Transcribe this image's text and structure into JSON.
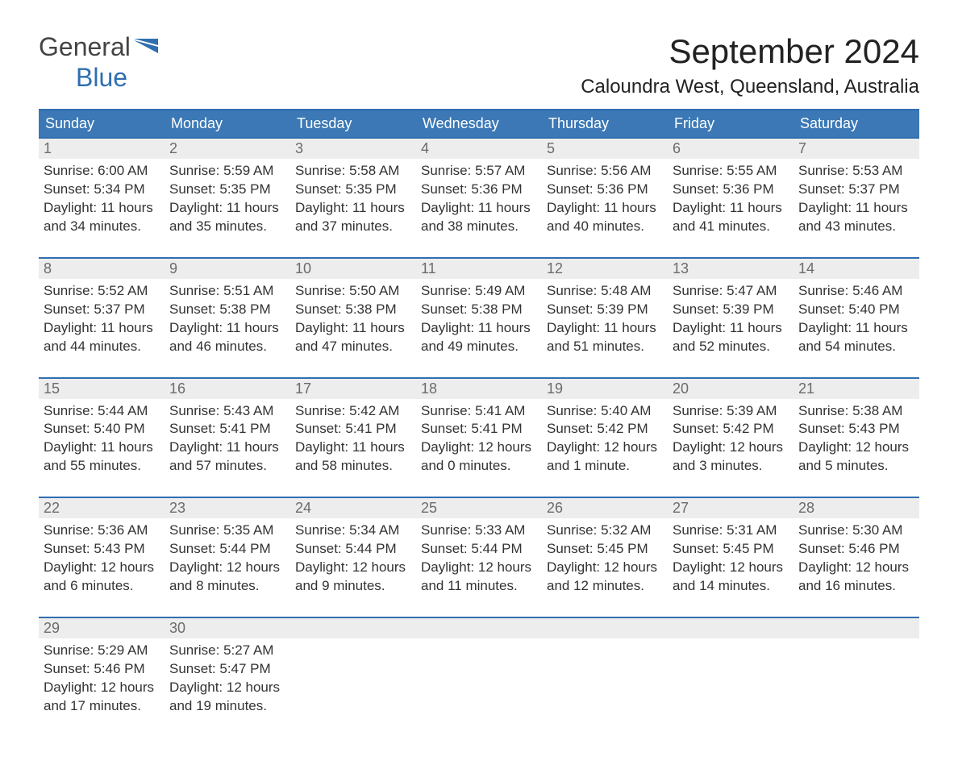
{
  "brand": {
    "part1": "General",
    "part2": "Blue"
  },
  "title": "September 2024",
  "location": "Caloundra West, Queensland, Australia",
  "colors": {
    "header_bg": "#3b78b5",
    "header_border": "#2f6fb0",
    "daynum_bg": "#ededed",
    "text": "#333333",
    "background": "#ffffff"
  },
  "day_headers": [
    "Sunday",
    "Monday",
    "Tuesday",
    "Wednesday",
    "Thursday",
    "Friday",
    "Saturday"
  ],
  "weeks": [
    [
      {
        "n": "1",
        "sr": "Sunrise: 6:00 AM",
        "ss": "Sunset: 5:34 PM",
        "d1": "Daylight: 11 hours",
        "d2": "and 34 minutes."
      },
      {
        "n": "2",
        "sr": "Sunrise: 5:59 AM",
        "ss": "Sunset: 5:35 PM",
        "d1": "Daylight: 11 hours",
        "d2": "and 35 minutes."
      },
      {
        "n": "3",
        "sr": "Sunrise: 5:58 AM",
        "ss": "Sunset: 5:35 PM",
        "d1": "Daylight: 11 hours",
        "d2": "and 37 minutes."
      },
      {
        "n": "4",
        "sr": "Sunrise: 5:57 AM",
        "ss": "Sunset: 5:36 PM",
        "d1": "Daylight: 11 hours",
        "d2": "and 38 minutes."
      },
      {
        "n": "5",
        "sr": "Sunrise: 5:56 AM",
        "ss": "Sunset: 5:36 PM",
        "d1": "Daylight: 11 hours",
        "d2": "and 40 minutes."
      },
      {
        "n": "6",
        "sr": "Sunrise: 5:55 AM",
        "ss": "Sunset: 5:36 PM",
        "d1": "Daylight: 11 hours",
        "d2": "and 41 minutes."
      },
      {
        "n": "7",
        "sr": "Sunrise: 5:53 AM",
        "ss": "Sunset: 5:37 PM",
        "d1": "Daylight: 11 hours",
        "d2": "and 43 minutes."
      }
    ],
    [
      {
        "n": "8",
        "sr": "Sunrise: 5:52 AM",
        "ss": "Sunset: 5:37 PM",
        "d1": "Daylight: 11 hours",
        "d2": "and 44 minutes."
      },
      {
        "n": "9",
        "sr": "Sunrise: 5:51 AM",
        "ss": "Sunset: 5:38 PM",
        "d1": "Daylight: 11 hours",
        "d2": "and 46 minutes."
      },
      {
        "n": "10",
        "sr": "Sunrise: 5:50 AM",
        "ss": "Sunset: 5:38 PM",
        "d1": "Daylight: 11 hours",
        "d2": "and 47 minutes."
      },
      {
        "n": "11",
        "sr": "Sunrise: 5:49 AM",
        "ss": "Sunset: 5:38 PM",
        "d1": "Daylight: 11 hours",
        "d2": "and 49 minutes."
      },
      {
        "n": "12",
        "sr": "Sunrise: 5:48 AM",
        "ss": "Sunset: 5:39 PM",
        "d1": "Daylight: 11 hours",
        "d2": "and 51 minutes."
      },
      {
        "n": "13",
        "sr": "Sunrise: 5:47 AM",
        "ss": "Sunset: 5:39 PM",
        "d1": "Daylight: 11 hours",
        "d2": "and 52 minutes."
      },
      {
        "n": "14",
        "sr": "Sunrise: 5:46 AM",
        "ss": "Sunset: 5:40 PM",
        "d1": "Daylight: 11 hours",
        "d2": "and 54 minutes."
      }
    ],
    [
      {
        "n": "15",
        "sr": "Sunrise: 5:44 AM",
        "ss": "Sunset: 5:40 PM",
        "d1": "Daylight: 11 hours",
        "d2": "and 55 minutes."
      },
      {
        "n": "16",
        "sr": "Sunrise: 5:43 AM",
        "ss": "Sunset: 5:41 PM",
        "d1": "Daylight: 11 hours",
        "d2": "and 57 minutes."
      },
      {
        "n": "17",
        "sr": "Sunrise: 5:42 AM",
        "ss": "Sunset: 5:41 PM",
        "d1": "Daylight: 11 hours",
        "d2": "and 58 minutes."
      },
      {
        "n": "18",
        "sr": "Sunrise: 5:41 AM",
        "ss": "Sunset: 5:41 PM",
        "d1": "Daylight: 12 hours",
        "d2": "and 0 minutes."
      },
      {
        "n": "19",
        "sr": "Sunrise: 5:40 AM",
        "ss": "Sunset: 5:42 PM",
        "d1": "Daylight: 12 hours",
        "d2": "and 1 minute."
      },
      {
        "n": "20",
        "sr": "Sunrise: 5:39 AM",
        "ss": "Sunset: 5:42 PM",
        "d1": "Daylight: 12 hours",
        "d2": "and 3 minutes."
      },
      {
        "n": "21",
        "sr": "Sunrise: 5:38 AM",
        "ss": "Sunset: 5:43 PM",
        "d1": "Daylight: 12 hours",
        "d2": "and 5 minutes."
      }
    ],
    [
      {
        "n": "22",
        "sr": "Sunrise: 5:36 AM",
        "ss": "Sunset: 5:43 PM",
        "d1": "Daylight: 12 hours",
        "d2": "and 6 minutes."
      },
      {
        "n": "23",
        "sr": "Sunrise: 5:35 AM",
        "ss": "Sunset: 5:44 PM",
        "d1": "Daylight: 12 hours",
        "d2": "and 8 minutes."
      },
      {
        "n": "24",
        "sr": "Sunrise: 5:34 AM",
        "ss": "Sunset: 5:44 PM",
        "d1": "Daylight: 12 hours",
        "d2": "and 9 minutes."
      },
      {
        "n": "25",
        "sr": "Sunrise: 5:33 AM",
        "ss": "Sunset: 5:44 PM",
        "d1": "Daylight: 12 hours",
        "d2": "and 11 minutes."
      },
      {
        "n": "26",
        "sr": "Sunrise: 5:32 AM",
        "ss": "Sunset: 5:45 PM",
        "d1": "Daylight: 12 hours",
        "d2": "and 12 minutes."
      },
      {
        "n": "27",
        "sr": "Sunrise: 5:31 AM",
        "ss": "Sunset: 5:45 PM",
        "d1": "Daylight: 12 hours",
        "d2": "and 14 minutes."
      },
      {
        "n": "28",
        "sr": "Sunrise: 5:30 AM",
        "ss": "Sunset: 5:46 PM",
        "d1": "Daylight: 12 hours",
        "d2": "and 16 minutes."
      }
    ],
    [
      {
        "n": "29",
        "sr": "Sunrise: 5:29 AM",
        "ss": "Sunset: 5:46 PM",
        "d1": "Daylight: 12 hours",
        "d2": "and 17 minutes."
      },
      {
        "n": "30",
        "sr": "Sunrise: 5:27 AM",
        "ss": "Sunset: 5:47 PM",
        "d1": "Daylight: 12 hours",
        "d2": "and 19 minutes."
      },
      null,
      null,
      null,
      null,
      null
    ]
  ]
}
